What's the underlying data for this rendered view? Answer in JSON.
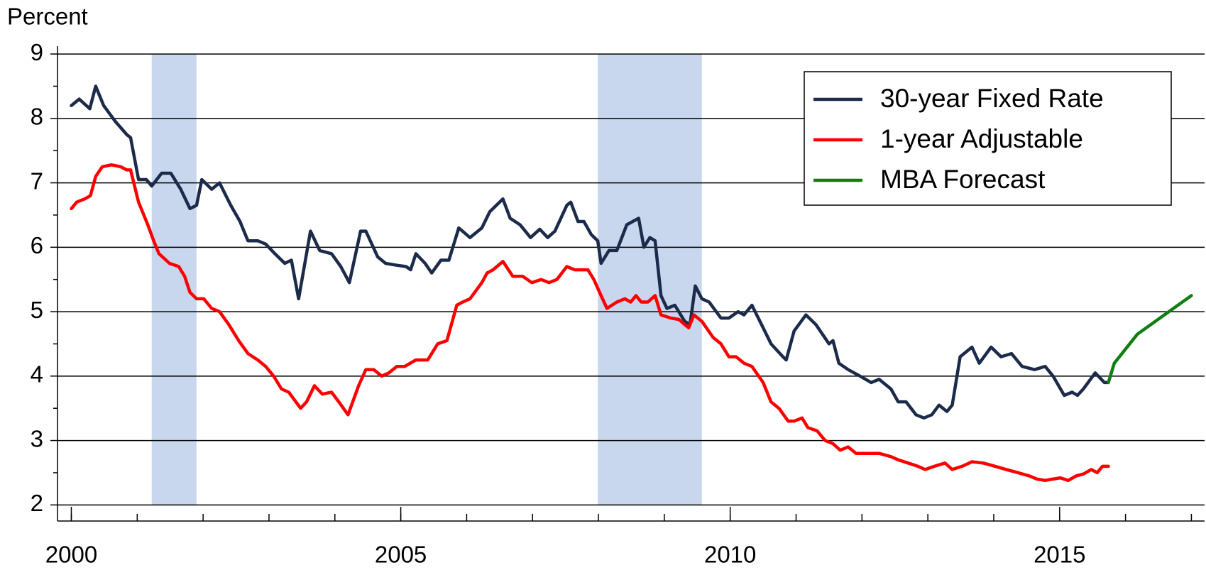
{
  "chart_data": {
    "type": "line",
    "y_label": "Percent",
    "xlim": [
      1999.79,
      2017.2
    ],
    "xticks": [
      2000,
      2005,
      2010,
      2015
    ],
    "x_minor_ticks": [
      2000,
      2001,
      2002,
      2003,
      2004,
      2005,
      2006,
      2007,
      2008,
      2009,
      2010,
      2011,
      2012,
      2013,
      2014,
      2015,
      2016,
      2017
    ],
    "ylim": [
      1.75,
      9.1
    ],
    "yticks": [
      2,
      3,
      4,
      5,
      6,
      7,
      8,
      9
    ],
    "y_minor_ticks": [
      2.5,
      3.5,
      4.5,
      5.5,
      6.5,
      7.5,
      8.5
    ],
    "grid": true,
    "legend_position": "upper-right",
    "shaded_periods": [
      [
        2001.22,
        2001.9
      ],
      [
        2007.99,
        2009.57
      ]
    ],
    "shade_color": "#c9d7ee",
    "series": [
      {
        "name": "30-year Fixed Rate",
        "color": "#1c2b4a",
        "x": [
          2000.0,
          2000.12,
          2000.28,
          2000.37,
          2000.49,
          2000.67,
          2000.84,
          2000.9,
          2001.02,
          2001.14,
          2001.22,
          2001.37,
          2001.51,
          2001.66,
          2001.8,
          2001.9,
          2001.98,
          2002.13,
          2002.25,
          2002.42,
          2002.56,
          2002.68,
          2002.83,
          2002.95,
          2003.09,
          2003.24,
          2003.34,
          2003.45,
          2003.63,
          2003.77,
          2003.95,
          2004.09,
          2004.22,
          2004.39,
          2004.47,
          2004.65,
          2004.77,
          2004.94,
          2005.08,
          2005.15,
          2005.23,
          2005.37,
          2005.47,
          2005.61,
          2005.73,
          2005.88,
          2006.05,
          2006.23,
          2006.35,
          2006.55,
          2006.66,
          2006.81,
          2006.97,
          2007.11,
          2007.23,
          2007.34,
          2007.52,
          2007.58,
          2007.69,
          2007.78,
          2007.89,
          2007.99,
          2008.04,
          2008.16,
          2008.28,
          2008.43,
          2008.61,
          2008.69,
          2008.78,
          2008.86,
          2008.95,
          2009.04,
          2009.16,
          2009.31,
          2009.39,
          2009.47,
          2009.57,
          2009.68,
          2009.86,
          2009.98,
          2010.12,
          2010.21,
          2010.33,
          2010.5,
          2010.62,
          2010.8,
          2010.85,
          2010.97,
          2011.15,
          2011.3,
          2011.5,
          2011.56,
          2011.65,
          2011.79,
          2011.97,
          2012.14,
          2012.26,
          2012.44,
          2012.55,
          2012.67,
          2012.82,
          2012.94,
          2013.06,
          2013.17,
          2013.29,
          2013.37,
          2013.49,
          2013.67,
          2013.78,
          2013.96,
          2014.11,
          2014.27,
          2014.43,
          2014.62,
          2014.78,
          2014.9,
          2015.07,
          2015.19,
          2015.27,
          2015.36,
          2015.54,
          2015.68,
          2015.74
        ],
        "values": [
          8.2,
          8.3,
          8.15,
          8.5,
          8.2,
          7.95,
          7.75,
          7.7,
          7.05,
          7.05,
          6.95,
          7.15,
          7.15,
          6.9,
          6.6,
          6.65,
          7.05,
          6.9,
          7.0,
          6.65,
          6.4,
          6.1,
          6.1,
          6.05,
          5.9,
          5.75,
          5.8,
          5.2,
          6.25,
          5.95,
          5.9,
          5.7,
          5.45,
          6.25,
          6.25,
          5.85,
          5.75,
          5.72,
          5.7,
          5.65,
          5.9,
          5.75,
          5.6,
          5.8,
          5.8,
          6.3,
          6.15,
          6.3,
          6.55,
          6.75,
          6.45,
          6.35,
          6.15,
          6.28,
          6.15,
          6.25,
          6.65,
          6.7,
          6.4,
          6.4,
          6.2,
          6.1,
          5.75,
          5.95,
          5.95,
          6.35,
          6.45,
          6.0,
          6.15,
          6.1,
          5.25,
          5.05,
          5.1,
          4.85,
          4.8,
          5.4,
          5.2,
          5.15,
          4.9,
          4.9,
          5.0,
          4.95,
          5.1,
          4.75,
          4.5,
          4.3,
          4.25,
          4.7,
          4.95,
          4.8,
          4.5,
          4.55,
          4.2,
          4.1,
          4.0,
          3.9,
          3.95,
          3.8,
          3.6,
          3.6,
          3.4,
          3.35,
          3.4,
          3.55,
          3.45,
          3.55,
          4.3,
          4.45,
          4.2,
          4.45,
          4.3,
          4.35,
          4.15,
          4.1,
          4.15,
          4.0,
          3.7,
          3.75,
          3.7,
          3.8,
          4.05,
          3.9,
          3.9
        ]
      },
      {
        "name": "1-year Adjustable",
        "color": "#ff0000",
        "x": [
          2000.0,
          2000.08,
          2000.2,
          2000.29,
          2000.37,
          2000.47,
          2000.61,
          2000.75,
          2000.84,
          2000.9,
          2001.02,
          2001.16,
          2001.25,
          2001.33,
          2001.49,
          2001.63,
          2001.72,
          2001.8,
          2001.9,
          2002.01,
          2002.13,
          2002.25,
          2002.39,
          2002.54,
          2002.68,
          2002.83,
          2002.95,
          2003.07,
          2003.19,
          2003.3,
          2003.48,
          2003.57,
          2003.69,
          2003.81,
          2003.95,
          2004.06,
          2004.2,
          2004.36,
          2004.47,
          2004.59,
          2004.71,
          2004.82,
          2004.94,
          2005.06,
          2005.23,
          2005.41,
          2005.56,
          2005.7,
          2005.85,
          2005.94,
          2006.05,
          2006.23,
          2006.31,
          2006.4,
          2006.55,
          2006.7,
          2006.85,
          2006.99,
          2007.13,
          2007.25,
          2007.37,
          2007.52,
          2007.64,
          2007.75,
          2007.84,
          2007.93,
          2008.04,
          2008.13,
          2008.28,
          2008.4,
          2008.49,
          2008.57,
          2008.65,
          2008.75,
          2008.86,
          2008.95,
          2009.1,
          2009.22,
          2009.31,
          2009.37,
          2009.45,
          2009.57,
          2009.74,
          2009.86,
          2009.98,
          2010.09,
          2010.21,
          2010.33,
          2010.5,
          2010.62,
          2010.74,
          2010.88,
          2010.97,
          2011.09,
          2011.18,
          2011.32,
          2011.44,
          2011.56,
          2011.67,
          2011.79,
          2011.91,
          2012.08,
          2012.26,
          2012.44,
          2012.55,
          2012.7,
          2012.85,
          2012.96,
          2013.1,
          2013.26,
          2013.37,
          2013.52,
          2013.67,
          2013.84,
          2014.02,
          2014.19,
          2014.37,
          2014.54,
          2014.66,
          2014.78,
          2014.89,
          2015.01,
          2015.13,
          2015.25,
          2015.36,
          2015.48,
          2015.57,
          2015.65,
          2015.74
        ],
        "values": [
          6.6,
          6.7,
          6.75,
          6.8,
          7.1,
          7.25,
          7.28,
          7.25,
          7.2,
          7.2,
          6.7,
          6.35,
          6.1,
          5.9,
          5.75,
          5.7,
          5.55,
          5.3,
          5.2,
          5.2,
          5.05,
          5.0,
          4.8,
          4.55,
          4.35,
          4.25,
          4.15,
          4.0,
          3.8,
          3.75,
          3.5,
          3.6,
          3.85,
          3.72,
          3.75,
          3.6,
          3.4,
          3.85,
          4.1,
          4.1,
          4.0,
          4.05,
          4.15,
          4.15,
          4.25,
          4.25,
          4.5,
          4.55,
          5.1,
          5.15,
          5.2,
          5.45,
          5.6,
          5.65,
          5.78,
          5.55,
          5.55,
          5.45,
          5.5,
          5.45,
          5.5,
          5.7,
          5.65,
          5.65,
          5.65,
          5.5,
          5.25,
          5.05,
          5.15,
          5.2,
          5.15,
          5.25,
          5.15,
          5.15,
          5.25,
          4.95,
          4.9,
          4.88,
          4.8,
          4.75,
          4.95,
          4.85,
          4.6,
          4.5,
          4.3,
          4.3,
          4.2,
          4.15,
          3.9,
          3.6,
          3.5,
          3.3,
          3.3,
          3.35,
          3.2,
          3.15,
          3.0,
          2.95,
          2.85,
          2.9,
          2.8,
          2.8,
          2.8,
          2.75,
          2.7,
          2.65,
          2.6,
          2.55,
          2.6,
          2.65,
          2.55,
          2.6,
          2.67,
          2.65,
          2.6,
          2.55,
          2.5,
          2.45,
          2.4,
          2.38,
          2.4,
          2.42,
          2.38,
          2.45,
          2.48,
          2.55,
          2.5,
          2.6,
          2.6
        ]
      },
      {
        "name": "MBA Forecast",
        "color": "#0f7f12",
        "x": [
          2015.74,
          2015.83,
          2016.18,
          2016.59,
          2017.0
        ],
        "values": [
          3.9,
          4.2,
          4.65,
          4.95,
          5.25
        ]
      }
    ]
  }
}
